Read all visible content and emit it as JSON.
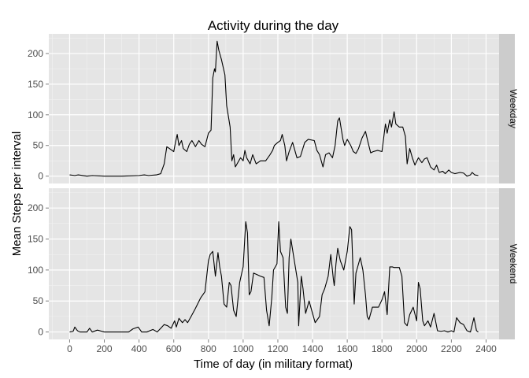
{
  "chart_data": {
    "type": "line",
    "title": "Activity during the day",
    "xlabel": "Time of day (in military format)",
    "ylabel": "Mean Steps per interval",
    "xlim": [
      -120,
      2475
    ],
    "ylim": [
      -12,
      232
    ],
    "x_ticks": [
      0,
      200,
      400,
      600,
      800,
      1000,
      1200,
      1400,
      1600,
      1800,
      2000,
      2200,
      2400
    ],
    "y_ticks": [
      0,
      50,
      100,
      150,
      200
    ],
    "grid": true,
    "line_color": "#000000",
    "panel_background": "#e5e5e5",
    "strip_background": "#cccccc",
    "panels": [
      {
        "strip": "Weekday",
        "points": [
          [
            0,
            2
          ],
          [
            30,
            1
          ],
          [
            50,
            2
          ],
          [
            100,
            0
          ],
          [
            130,
            1
          ],
          [
            200,
            0
          ],
          [
            300,
            0
          ],
          [
            400,
            1
          ],
          [
            430,
            2
          ],
          [
            455,
            1
          ],
          [
            500,
            2
          ],
          [
            525,
            4
          ],
          [
            545,
            20
          ],
          [
            560,
            48
          ],
          [
            575,
            45
          ],
          [
            600,
            40
          ],
          [
            610,
            55
          ],
          [
            620,
            68
          ],
          [
            630,
            50
          ],
          [
            645,
            58
          ],
          [
            655,
            45
          ],
          [
            675,
            40
          ],
          [
            690,
            52
          ],
          [
            705,
            58
          ],
          [
            725,
            48
          ],
          [
            745,
            58
          ],
          [
            760,
            52
          ],
          [
            780,
            48
          ],
          [
            800,
            70
          ],
          [
            815,
            75
          ],
          [
            825,
            160
          ],
          [
            835,
            175
          ],
          [
            840,
            170
          ],
          [
            850,
            220
          ],
          [
            860,
            205
          ],
          [
            875,
            190
          ],
          [
            895,
            165
          ],
          [
            905,
            115
          ],
          [
            925,
            80
          ],
          [
            935,
            25
          ],
          [
            945,
            35
          ],
          [
            955,
            15
          ],
          [
            985,
            30
          ],
          [
            1000,
            25
          ],
          [
            1010,
            42
          ],
          [
            1020,
            30
          ],
          [
            1040,
            20
          ],
          [
            1055,
            35
          ],
          [
            1075,
            20
          ],
          [
            1100,
            25
          ],
          [
            1130,
            25
          ],
          [
            1155,
            35
          ],
          [
            1170,
            42
          ],
          [
            1180,
            50
          ],
          [
            1200,
            55
          ],
          [
            1215,
            58
          ],
          [
            1225,
            68
          ],
          [
            1240,
            50
          ],
          [
            1250,
            25
          ],
          [
            1265,
            40
          ],
          [
            1285,
            55
          ],
          [
            1310,
            30
          ],
          [
            1330,
            32
          ],
          [
            1355,
            55
          ],
          [
            1375,
            60
          ],
          [
            1410,
            58
          ],
          [
            1425,
            42
          ],
          [
            1440,
            35
          ],
          [
            1460,
            15
          ],
          [
            1475,
            35
          ],
          [
            1495,
            38
          ],
          [
            1515,
            30
          ],
          [
            1530,
            50
          ],
          [
            1545,
            90
          ],
          [
            1555,
            95
          ],
          [
            1575,
            60
          ],
          [
            1585,
            50
          ],
          [
            1600,
            60
          ],
          [
            1620,
            50
          ],
          [
            1635,
            40
          ],
          [
            1650,
            37
          ],
          [
            1665,
            45
          ],
          [
            1685,
            62
          ],
          [
            1705,
            73
          ],
          [
            1720,
            55
          ],
          [
            1735,
            38
          ],
          [
            1750,
            40
          ],
          [
            1775,
            42
          ],
          [
            1800,
            40
          ],
          [
            1820,
            85
          ],
          [
            1830,
            70
          ],
          [
            1845,
            92
          ],
          [
            1855,
            80
          ],
          [
            1870,
            105
          ],
          [
            1880,
            85
          ],
          [
            1900,
            80
          ],
          [
            1920,
            80
          ],
          [
            1935,
            65
          ],
          [
            1945,
            20
          ],
          [
            1960,
            45
          ],
          [
            1975,
            30
          ],
          [
            1990,
            18
          ],
          [
            2010,
            30
          ],
          [
            2030,
            22
          ],
          [
            2045,
            28
          ],
          [
            2060,
            30
          ],
          [
            2080,
            15
          ],
          [
            2100,
            10
          ],
          [
            2115,
            18
          ],
          [
            2130,
            6
          ],
          [
            2150,
            8
          ],
          [
            2165,
            4
          ],
          [
            2185,
            10
          ],
          [
            2200,
            6
          ],
          [
            2220,
            4
          ],
          [
            2250,
            6
          ],
          [
            2270,
            5
          ],
          [
            2290,
            0
          ],
          [
            2310,
            2
          ],
          [
            2320,
            6
          ],
          [
            2335,
            2
          ],
          [
            2355,
            1
          ]
        ]
      },
      {
        "strip": "Weekend",
        "points": [
          [
            0,
            0
          ],
          [
            20,
            1
          ],
          [
            30,
            8
          ],
          [
            45,
            2
          ],
          [
            60,
            0
          ],
          [
            100,
            0
          ],
          [
            115,
            6
          ],
          [
            130,
            0
          ],
          [
            160,
            3
          ],
          [
            200,
            0
          ],
          [
            250,
            0
          ],
          [
            300,
            0
          ],
          [
            340,
            0
          ],
          [
            365,
            5
          ],
          [
            395,
            8
          ],
          [
            415,
            0
          ],
          [
            445,
            0
          ],
          [
            480,
            4
          ],
          [
            505,
            0
          ],
          [
            525,
            6
          ],
          [
            545,
            12
          ],
          [
            565,
            10
          ],
          [
            585,
            6
          ],
          [
            605,
            18
          ],
          [
            615,
            8
          ],
          [
            630,
            22
          ],
          [
            650,
            15
          ],
          [
            665,
            20
          ],
          [
            680,
            15
          ],
          [
            700,
            25
          ],
          [
            725,
            38
          ],
          [
            755,
            55
          ],
          [
            780,
            65
          ],
          [
            800,
            115
          ],
          [
            810,
            125
          ],
          [
            825,
            130
          ],
          [
            840,
            90
          ],
          [
            855,
            128
          ],
          [
            865,
            105
          ],
          [
            875,
            90
          ],
          [
            890,
            45
          ],
          [
            905,
            40
          ],
          [
            920,
            80
          ],
          [
            930,
            75
          ],
          [
            945,
            35
          ],
          [
            960,
            25
          ],
          [
            980,
            80
          ],
          [
            1000,
            105
          ],
          [
            1015,
            178
          ],
          [
            1025,
            160
          ],
          [
            1035,
            60
          ],
          [
            1045,
            65
          ],
          [
            1060,
            95
          ],
          [
            1100,
            90
          ],
          [
            1120,
            88
          ],
          [
            1135,
            35
          ],
          [
            1150,
            10
          ],
          [
            1165,
            55
          ],
          [
            1175,
            100
          ],
          [
            1195,
            110
          ],
          [
            1205,
            178
          ],
          [
            1215,
            130
          ],
          [
            1230,
            120
          ],
          [
            1245,
            40
          ],
          [
            1255,
            30
          ],
          [
            1265,
            120
          ],
          [
            1275,
            150
          ],
          [
            1295,
            115
          ],
          [
            1315,
            80
          ],
          [
            1320,
            10
          ],
          [
            1335,
            90
          ],
          [
            1345,
            70
          ],
          [
            1360,
            30
          ],
          [
            1380,
            50
          ],
          [
            1400,
            30
          ],
          [
            1415,
            15
          ],
          [
            1440,
            25
          ],
          [
            1455,
            60
          ],
          [
            1470,
            70
          ],
          [
            1490,
            90
          ],
          [
            1505,
            125
          ],
          [
            1520,
            85
          ],
          [
            1525,
            75
          ],
          [
            1535,
            110
          ],
          [
            1545,
            135
          ],
          [
            1560,
            115
          ],
          [
            1580,
            100
          ],
          [
            1600,
            130
          ],
          [
            1615,
            170
          ],
          [
            1625,
            165
          ],
          [
            1640,
            45
          ],
          [
            1650,
            95
          ],
          [
            1675,
            120
          ],
          [
            1690,
            100
          ],
          [
            1705,
            60
          ],
          [
            1715,
            25
          ],
          [
            1725,
            20
          ],
          [
            1745,
            40
          ],
          [
            1765,
            40
          ],
          [
            1780,
            40
          ],
          [
            1800,
            52
          ],
          [
            1815,
            65
          ],
          [
            1830,
            28
          ],
          [
            1845,
            105
          ],
          [
            1860,
            105
          ],
          [
            1870,
            104
          ],
          [
            1900,
            104
          ],
          [
            1915,
            90
          ],
          [
            1930,
            15
          ],
          [
            1945,
            10
          ],
          [
            1960,
            28
          ],
          [
            1980,
            40
          ],
          [
            2000,
            18
          ],
          [
            2010,
            80
          ],
          [
            2020,
            70
          ],
          [
            2035,
            18
          ],
          [
            2045,
            10
          ],
          [
            2065,
            18
          ],
          [
            2080,
            8
          ],
          [
            2100,
            30
          ],
          [
            2120,
            2
          ],
          [
            2140,
            1
          ],
          [
            2160,
            2
          ],
          [
            2180,
            0
          ],
          [
            2200,
            2
          ],
          [
            2215,
            0
          ],
          [
            2230,
            23
          ],
          [
            2250,
            15
          ],
          [
            2270,
            12
          ],
          [
            2290,
            2
          ],
          [
            2310,
            0
          ],
          [
            2330,
            23
          ],
          [
            2345,
            2
          ],
          [
            2355,
            0
          ]
        ]
      }
    ]
  }
}
